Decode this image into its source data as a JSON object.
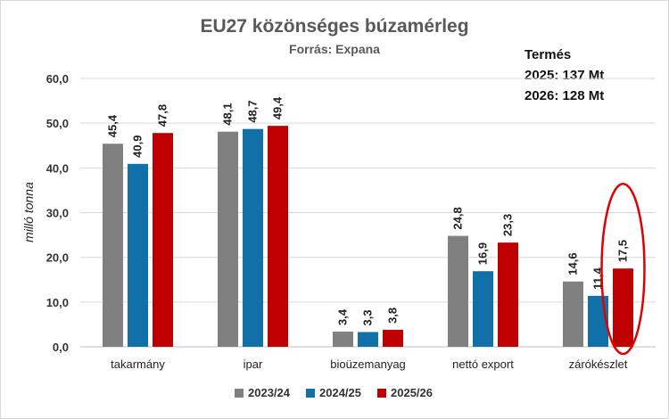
{
  "chart_data": {
    "type": "bar",
    "title": "EU27 közönséges búzamérleg",
    "subtitle": "Forrás: Expana",
    "ylabel": "milló tonna",
    "xlabel": "",
    "ylim": [
      0,
      60
    ],
    "ytick_values": [
      0,
      10,
      20,
      30,
      40,
      50,
      60
    ],
    "ytick_labels": [
      "0,0",
      "10,0",
      "20,0",
      "30,0",
      "40,0",
      "50,0",
      "60,0"
    ],
    "grid": true,
    "legend_position": "bottom",
    "categories": [
      "takarmány",
      "ipar",
      "bioüzemanyag",
      "nettó export",
      "zárókészlet"
    ],
    "series": [
      {
        "name": "2023/24",
        "color": "#808080",
        "values": [
          45.4,
          48.1,
          3.4,
          24.8,
          14.6
        ],
        "labels": [
          "45,4",
          "48,1",
          "3,4",
          "24,8",
          "14,6"
        ]
      },
      {
        "name": "2024/25",
        "color": "#1170a8",
        "values": [
          40.9,
          48.7,
          3.3,
          16.9,
          11.4
        ],
        "labels": [
          "40,9",
          "48,7",
          "3,3",
          "16,9",
          "11,4"
        ]
      },
      {
        "name": "2025/26",
        "color": "#c00000",
        "values": [
          47.8,
          49.4,
          3.8,
          23.3,
          17.5
        ],
        "labels": [
          "47,8",
          "49,4",
          "3,8",
          "23,3",
          "17,5"
        ]
      }
    ],
    "annotation": {
      "lines": [
        "Termés",
        "2025: 137 Mt",
        "2026: 128 Mt"
      ],
      "position": "top-right"
    },
    "highlight": {
      "category": "zárókészlet",
      "series": "2025/26",
      "shape": "ellipse",
      "color": "#e00000"
    }
  }
}
